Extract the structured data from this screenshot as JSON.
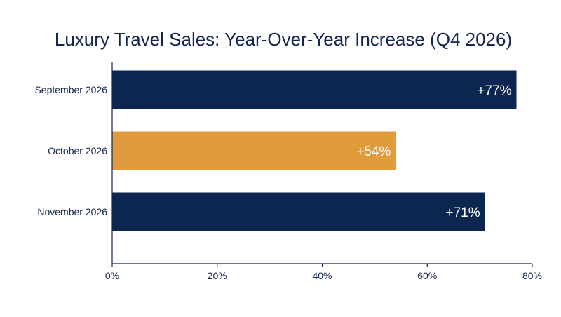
{
  "chart_data": {
    "type": "bar",
    "orientation": "horizontal",
    "title": "Luxury Travel Sales: Year-Over-Year Increase (Q4 2026)",
    "xlabel": "",
    "ylabel": "",
    "categories": [
      "September 2026",
      "October 2026",
      "November 2026"
    ],
    "values": [
      77,
      54,
      71
    ],
    "data_labels": [
      "+77%",
      "+54%",
      "+71%"
    ],
    "bar_colors": [
      "#0c2650",
      "#e09b3d",
      "#0c2650"
    ],
    "xlim": [
      0,
      80
    ],
    "xticks": [
      0,
      20,
      40,
      60,
      80
    ],
    "xtick_labels": [
      "0%",
      "20%",
      "40%",
      "60%",
      "80%"
    ],
    "grid": false,
    "legend": "none"
  }
}
